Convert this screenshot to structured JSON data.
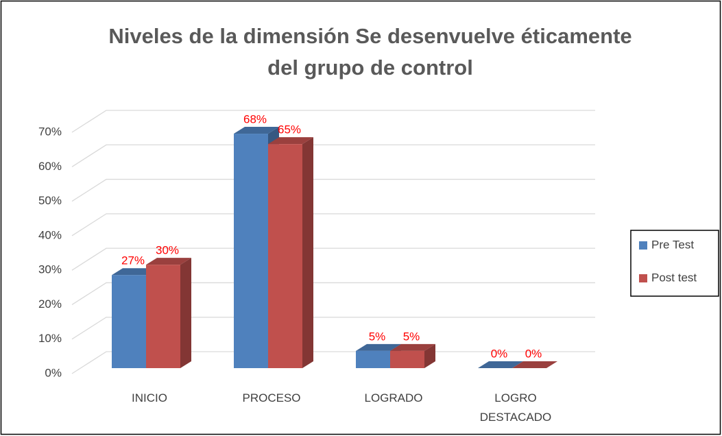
{
  "chart_data": {
    "type": "bar3d",
    "title": "Niveles de la dimensión Se desenvuelve éticamente del grupo de control",
    "categories": [
      "INICIO",
      "PROCESO",
      "LOGRADO",
      "LOGRO DESTACADO"
    ],
    "series": [
      {
        "name": "Pre Test",
        "color": "#4f81bd",
        "values": [
          27,
          68,
          5,
          0
        ],
        "value_labels": [
          "27%",
          "68%",
          "5%",
          "0%"
        ]
      },
      {
        "name": "Post test",
        "color": "#c0504d",
        "values": [
          30,
          65,
          5,
          0
        ],
        "value_labels": [
          "30%",
          "65%",
          "5%",
          "0%"
        ]
      }
    ],
    "value_label_color": "#ff0000",
    "ylim": [
      0,
      70
    ],
    "yticks": [
      {
        "value": 0,
        "label": "0%"
      },
      {
        "value": 10,
        "label": "10%"
      },
      {
        "value": 20,
        "label": "20%"
      },
      {
        "value": 30,
        "label": "30%"
      },
      {
        "value": 40,
        "label": "40%"
      },
      {
        "value": 50,
        "label": "50%"
      },
      {
        "value": 60,
        "label": "60%"
      },
      {
        "value": 70,
        "label": "70%"
      }
    ],
    "grid": true,
    "legend": "right"
  }
}
